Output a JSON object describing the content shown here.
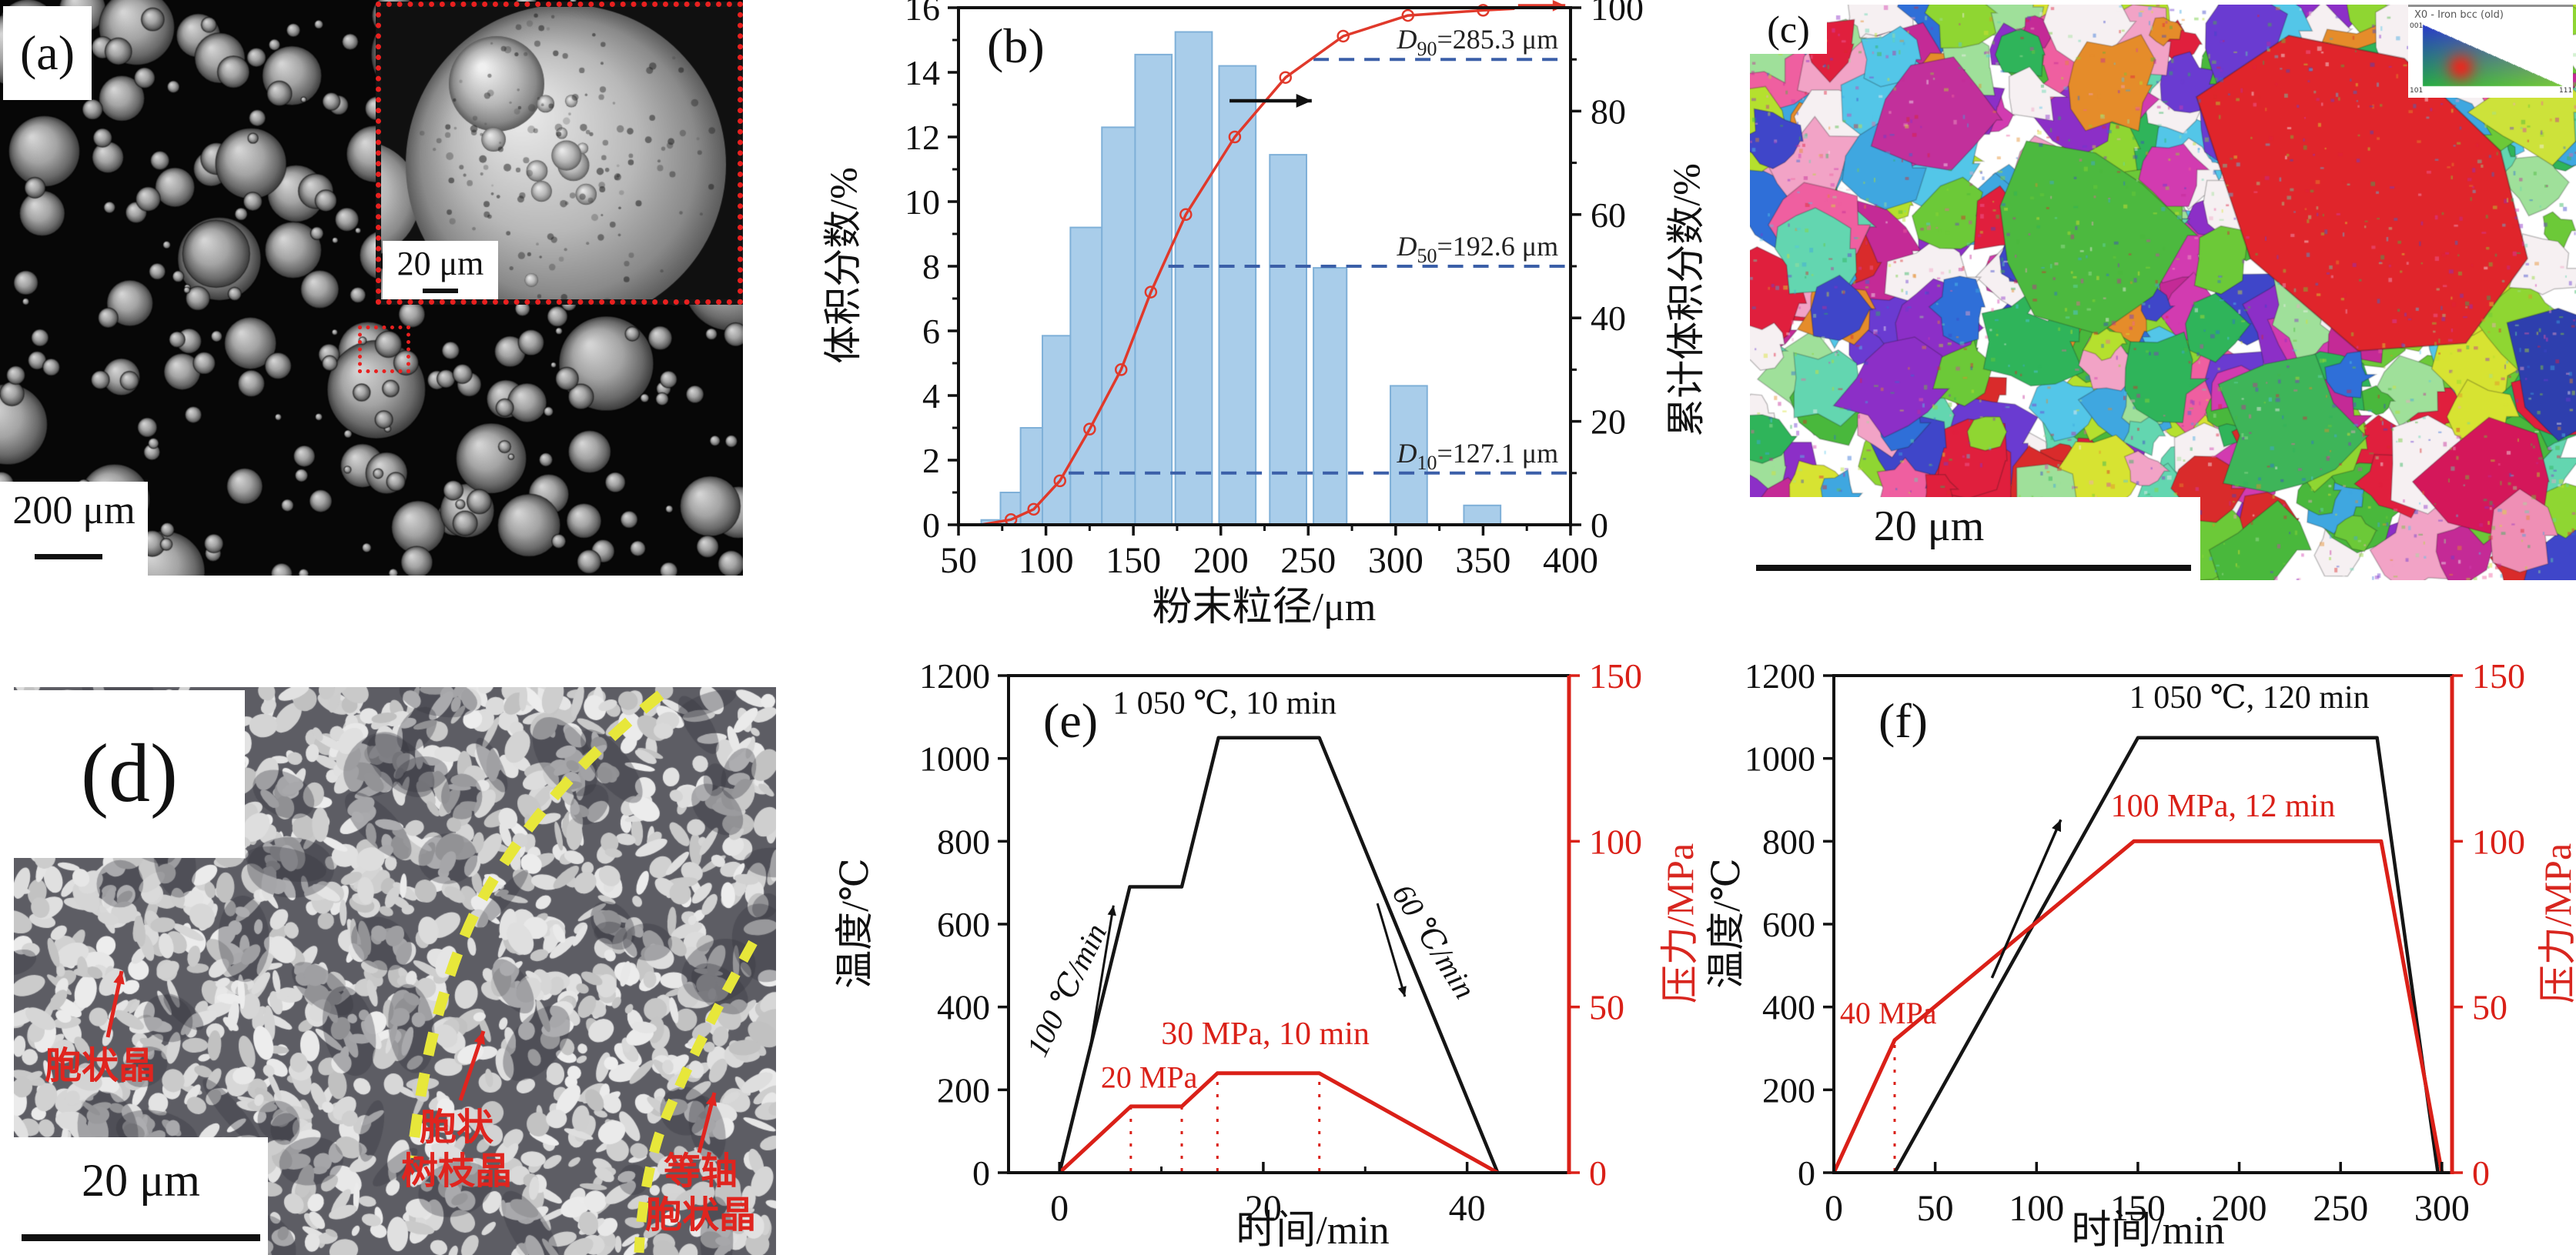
{
  "figure": {
    "panels": {
      "a": {
        "label": "(a)",
        "scale_bar": "200 μm",
        "inset": {
          "scale_bar": "20 μm"
        }
      },
      "b": {
        "label": "(b)"
      },
      "c": {
        "label": "(c)",
        "scale_bar": "20 μm",
        "ipf": {
          "title": "X0 - Iron bcc (old)",
          "corners": [
            "001",
            "101",
            "111"
          ]
        }
      },
      "d": {
        "label": "(d)",
        "scale_bar": "20 μm",
        "annotations": {
          "cellular": "胞状晶",
          "cellular_dendrite": [
            "胞状",
            "树枝晶"
          ],
          "equiaxed_cellular": [
            "等轴",
            "胞状晶"
          ]
        }
      },
      "e": {
        "label": "(e)"
      },
      "f": {
        "label": "(f)"
      }
    }
  },
  "chart_data": [
    {
      "id": "b",
      "type": "bar",
      "xlabel": "粉末粒径/μm",
      "ylabel_left": "体积分数/%",
      "ylabel_right": "累计体积分数/%",
      "xlim": [
        50,
        400
      ],
      "ylim_left": [
        0,
        16
      ],
      "ylim_right": [
        0,
        100
      ],
      "xticks": [
        50,
        100,
        150,
        200,
        250,
        300,
        350,
        400
      ],
      "yticks_left": [
        0,
        2,
        4,
        6,
        8,
        10,
        12,
        14,
        16
      ],
      "yticks_right": [
        0,
        20,
        40,
        60,
        80,
        100
      ],
      "bar_color": "#a9cdea",
      "bar_edge": "#7fb0d8",
      "line_color": "#e0392b",
      "dash_color": "#3b5fa8",
      "bars": [
        [
          63,
          74,
          0.15
        ],
        [
          74,
          85.5,
          1.0
        ],
        [
          85.5,
          98,
          3.0
        ],
        [
          98,
          114,
          5.85
        ],
        [
          114,
          132,
          9.2
        ],
        [
          132,
          151,
          12.3
        ],
        [
          151,
          172,
          14.55
        ],
        [
          174,
          195,
          15.25
        ],
        [
          199,
          220,
          14.2
        ],
        [
          228,
          249,
          11.45
        ],
        [
          253,
          272,
          7.95
        ],
        [
          297,
          318,
          4.3
        ],
        [
          339,
          360,
          0.6
        ]
      ],
      "cumulative": [
        [
          63,
          0
        ],
        [
          80,
          1
        ],
        [
          93,
          3
        ],
        [
          108,
          8.5
        ],
        [
          125,
          18.5
        ],
        [
          143,
          30
        ],
        [
          160,
          45
        ],
        [
          180,
          60
        ],
        [
          208,
          75
        ],
        [
          237,
          86.5
        ],
        [
          270,
          94.5
        ],
        [
          307,
          98.5
        ],
        [
          350,
          99.5
        ],
        [
          368,
          99.8
        ]
      ],
      "d_lines": [
        {
          "sub": "90",
          "text": "=285.3 μm",
          "y": 90,
          "x_start": 253
        },
        {
          "sub": "50",
          "text": "=192.6 μm",
          "y": 50,
          "x_start": 170
        },
        {
          "sub": "10",
          "text": "=127.1 μm",
          "y": 10,
          "x_start": 113
        }
      ]
    },
    {
      "id": "e",
      "type": "line",
      "xlabel": "时间/min",
      "ylabel_left": "温度/℃",
      "ylabel_right": "压力/MPa",
      "xlim": [
        -5,
        50
      ],
      "ylim_left": [
        0,
        1200
      ],
      "ylim_right": [
        0,
        150
      ],
      "xticks": [
        0,
        20,
        40
      ],
      "xticks_minor": [
        10,
        30
      ],
      "yticks_left": [
        0,
        200,
        400,
        600,
        800,
        1000,
        1200
      ],
      "yticks_right": [
        0,
        50,
        100,
        150
      ],
      "temp_color": "#151515",
      "press_color": "#da2018",
      "temperature_c": [
        [
          0,
          0
        ],
        [
          6.9,
          690
        ],
        [
          12,
          690
        ],
        [
          15.6,
          1050
        ],
        [
          25.5,
          1050
        ],
        [
          43,
          0
        ]
      ],
      "pressure_mpa": [
        [
          0,
          0
        ],
        [
          7,
          20
        ],
        [
          12,
          20
        ],
        [
          15.5,
          30
        ],
        [
          25.5,
          30
        ],
        [
          43,
          0
        ]
      ],
      "guides_min": [
        [
          7,
          20
        ],
        [
          12,
          20
        ],
        [
          15.5,
          30
        ],
        [
          25.5,
          30
        ]
      ],
      "annotations": {
        "plateau": "1 050 ℃, 10 min",
        "heat_rate": "100 ℃/min",
        "cool_rate": "60 ℃/min",
        "pressure_hold": "30 MPa, 10 min",
        "pressure_step": "20 MPa"
      }
    },
    {
      "id": "f",
      "type": "line",
      "xlabel": "时间/min",
      "ylabel_left": "温度/℃",
      "ylabel_right": "压力/MPa",
      "xlim": [
        0,
        305
      ],
      "ylim_left": [
        0,
        1200
      ],
      "ylim_right": [
        0,
        150
      ],
      "xticks": [
        0,
        50,
        100,
        150,
        200,
        250,
        300
      ],
      "xticks_minor": [],
      "yticks_left": [
        0,
        200,
        400,
        600,
        800,
        1000,
        1200
      ],
      "yticks_right": [
        0,
        50,
        100,
        150
      ],
      "temp_color": "#151515",
      "press_color": "#da2018",
      "temperature_c": [
        [
          30,
          0
        ],
        [
          150,
          1050
        ],
        [
          268,
          1050
        ],
        [
          298,
          0
        ]
      ],
      "pressure_mpa": [
        [
          0,
          0
        ],
        [
          30,
          40
        ],
        [
          148,
          100
        ],
        [
          270,
          100
        ],
        [
          300,
          0
        ]
      ],
      "guides_min": [
        [
          30,
          40
        ]
      ],
      "annotations": {
        "plateau": "1 050 ℃, 120 min",
        "pressure_hold": "100 MPa, 12 min",
        "pressure_step": "40 MPa"
      }
    }
  ]
}
